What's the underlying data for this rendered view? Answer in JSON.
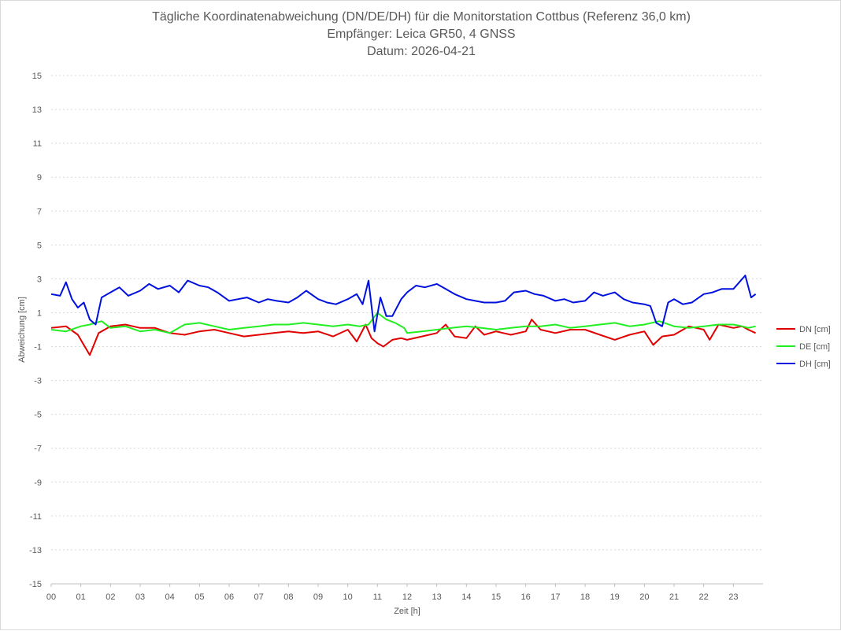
{
  "chart_data": {
    "type": "line",
    "title": "Tägliche Koordinatenabweichung (DN/DE/DH) für die Monitorstation Cottbus (Referenz 36,0 km)",
    "subtitle": "Empfänger: Leica GR50, 4 GNSS",
    "date_line": "Datum: 2026-04-21",
    "xlabel": "Zeit [h]",
    "ylabel": "Abweichung [cm]",
    "xlim": [
      0,
      24
    ],
    "ylim": [
      -15,
      15
    ],
    "x_ticks": [
      "00",
      "01",
      "02",
      "03",
      "04",
      "05",
      "06",
      "07",
      "08",
      "09",
      "10",
      "11",
      "12",
      "13",
      "14",
      "15",
      "16",
      "17",
      "18",
      "19",
      "20",
      "21",
      "22",
      "23"
    ],
    "y_ticks": [
      15,
      13,
      11,
      9,
      7,
      5,
      3,
      1,
      -1,
      -3,
      -5,
      -7,
      -9,
      -11,
      -13,
      -15
    ],
    "grid": "horizontal dotted",
    "legend_position": "right",
    "series": [
      {
        "name": "DN [cm]",
        "color": "#e00000",
        "x": [
          0,
          0.5,
          0.9,
          1.1,
          1.3,
          1.6,
          2,
          2.5,
          3,
          3.5,
          4,
          4.5,
          5,
          5.5,
          6,
          6.5,
          7,
          7.5,
          8,
          8.5,
          9,
          9.5,
          10,
          10.3,
          10.6,
          10.8,
          11,
          11.2,
          11.5,
          11.8,
          12,
          12.5,
          13,
          13.3,
          13.6,
          14,
          14.3,
          14.6,
          15,
          15.5,
          16,
          16.2,
          16.5,
          17,
          17.5,
          18,
          18.5,
          19,
          19.5,
          20,
          20.3,
          20.6,
          21,
          21.5,
          22,
          22.2,
          22.5,
          23,
          23.3,
          23.5,
          23.75
        ],
        "y": [
          0.1,
          0.2,
          -0.3,
          -0.9,
          -1.5,
          -0.2,
          0.2,
          0.3,
          0.1,
          0.1,
          -0.2,
          -0.3,
          -0.1,
          0,
          -0.2,
          -0.4,
          -0.3,
          -0.2,
          -0.1,
          -0.2,
          -0.1,
          -0.4,
          0,
          -0.7,
          0.3,
          -0.5,
          -0.8,
          -1,
          -0.6,
          -0.5,
          -0.6,
          -0.4,
          -0.2,
          0.3,
          -0.4,
          -0.5,
          0.2,
          -0.3,
          -0.1,
          -0.3,
          -0.1,
          0.6,
          0,
          -0.2,
          0,
          0,
          -0.3,
          -0.6,
          -0.3,
          -0.1,
          -0.9,
          -0.4,
          -0.3,
          0.2,
          0,
          -0.6,
          0.3,
          0.1,
          0.2,
          0,
          -0.2
        ]
      },
      {
        "name": "DE [cm]",
        "color": "#22ee22",
        "x": [
          0,
          0.5,
          1,
          1.3,
          1.7,
          2,
          2.5,
          3,
          3.5,
          4,
          4.5,
          5,
          5.5,
          6,
          6.5,
          7,
          7.5,
          8,
          8.5,
          9,
          9.5,
          10,
          10.4,
          10.7,
          11,
          11.3,
          11.6,
          11.9,
          12,
          12.5,
          13,
          13.5,
          14,
          14.5,
          15,
          15.5,
          16,
          16.5,
          17,
          17.5,
          18,
          18.5,
          19,
          19.5,
          20,
          20.5,
          21,
          21.5,
          22,
          22.5,
          23,
          23.3,
          23.5,
          23.75
        ],
        "y": [
          0,
          -0.1,
          0.2,
          0.3,
          0.5,
          0.1,
          0.2,
          -0.1,
          0,
          -0.2,
          0.3,
          0.4,
          0.2,
          0,
          0.1,
          0.2,
          0.3,
          0.3,
          0.4,
          0.3,
          0.2,
          0.3,
          0.2,
          0.3,
          1,
          0.6,
          0.4,
          0.1,
          -0.2,
          -0.1,
          0,
          0.1,
          0.2,
          0.1,
          0,
          0.1,
          0.2,
          0.2,
          0.3,
          0.1,
          0.2,
          0.3,
          0.4,
          0.2,
          0.3,
          0.5,
          0.2,
          0.1,
          0.2,
          0.3,
          0.3,
          0.2,
          0.1,
          0.2
        ]
      },
      {
        "name": "DH [cm]",
        "color": "#0010dd",
        "x": [
          0,
          0.3,
          0.5,
          0.7,
          0.9,
          1.1,
          1.3,
          1.5,
          1.7,
          2,
          2.3,
          2.6,
          3,
          3.3,
          3.6,
          4,
          4.3,
          4.6,
          5,
          5.3,
          5.6,
          6,
          6.3,
          6.6,
          7,
          7.3,
          7.6,
          8,
          8.3,
          8.6,
          9,
          9.3,
          9.6,
          10,
          10.3,
          10.5,
          10.7,
          10.9,
          11.1,
          11.3,
          11.5,
          11.8,
          12,
          12.3,
          12.6,
          13,
          13.3,
          13.6,
          14,
          14.3,
          14.6,
          15,
          15.3,
          15.6,
          16,
          16.3,
          16.6,
          17,
          17.3,
          17.6,
          18,
          18.3,
          18.6,
          19,
          19.3,
          19.6,
          20,
          20.2,
          20.4,
          20.6,
          20.8,
          21,
          21.3,
          21.6,
          22,
          22.3,
          22.6,
          23,
          23.2,
          23.4,
          23.6,
          23.75
        ],
        "y": [
          2.1,
          2,
          2.8,
          1.8,
          1.3,
          1.6,
          0.6,
          0.3,
          1.9,
          2.2,
          2.5,
          2,
          2.3,
          2.7,
          2.4,
          2.6,
          2.2,
          2.9,
          2.6,
          2.5,
          2.2,
          1.7,
          1.8,
          1.9,
          1.6,
          1.8,
          1.7,
          1.6,
          1.9,
          2.3,
          1.8,
          1.6,
          1.5,
          1.8,
          2.1,
          1.5,
          2.9,
          -0.1,
          1.9,
          0.8,
          0.8,
          1.8,
          2.2,
          2.6,
          2.5,
          2.7,
          2.4,
          2.1,
          1.8,
          1.7,
          1.6,
          1.6,
          1.7,
          2.2,
          2.3,
          2.1,
          2,
          1.7,
          1.8,
          1.6,
          1.7,
          2.2,
          2,
          2.2,
          1.8,
          1.6,
          1.5,
          1.4,
          0.4,
          0.2,
          1.6,
          1.8,
          1.5,
          1.6,
          2.1,
          2.2,
          2.4,
          2.4,
          2.8,
          3.2,
          1.9,
          2.1
        ]
      }
    ]
  }
}
